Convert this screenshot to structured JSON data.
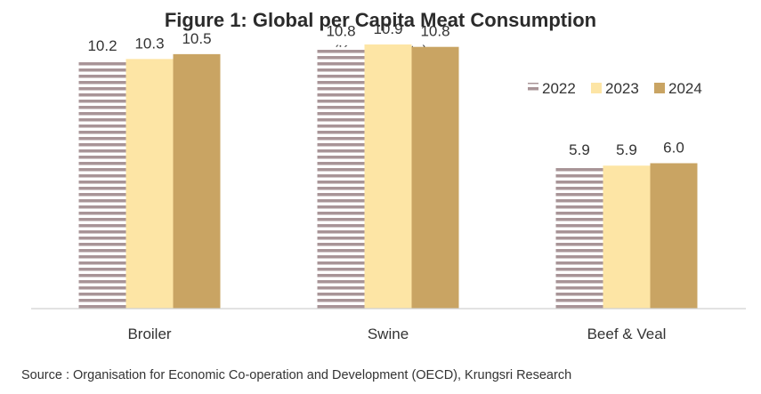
{
  "chart_data": {
    "type": "bar",
    "title": "Figure 1: Global per Capita Meat Consumption",
    "subtitle": "(Kg per capita)",
    "categories": [
      "Broiler",
      "Swine",
      "Beef & Veal"
    ],
    "series": [
      {
        "name": "2022",
        "values": [
          10.2,
          10.8,
          5.9
        ],
        "labels": [
          "10.2",
          "10.8",
          "5.9"
        ],
        "color": "#a89497",
        "pattern": "horizontal-stripes"
      },
      {
        "name": "2023",
        "values": [
          10.3,
          10.9,
          5.9
        ],
        "labels": [
          "10.3",
          "10.9",
          "5.9"
        ],
        "color": "#fde5a5",
        "pattern": "solid"
      },
      {
        "name": "2024",
        "values": [
          10.5,
          10.8,
          6.0
        ],
        "labels": [
          "10.5",
          "10.8",
          "6.0"
        ],
        "color": "#c9a463",
        "pattern": "solid"
      }
    ],
    "ylim": [
      0,
      12
    ],
    "grid": false,
    "legend_position": "top-right",
    "xlabel": "",
    "ylabel": ""
  },
  "source": "Source : Organisation for Economic Co-operation and Development (OECD), Krungsri Research"
}
